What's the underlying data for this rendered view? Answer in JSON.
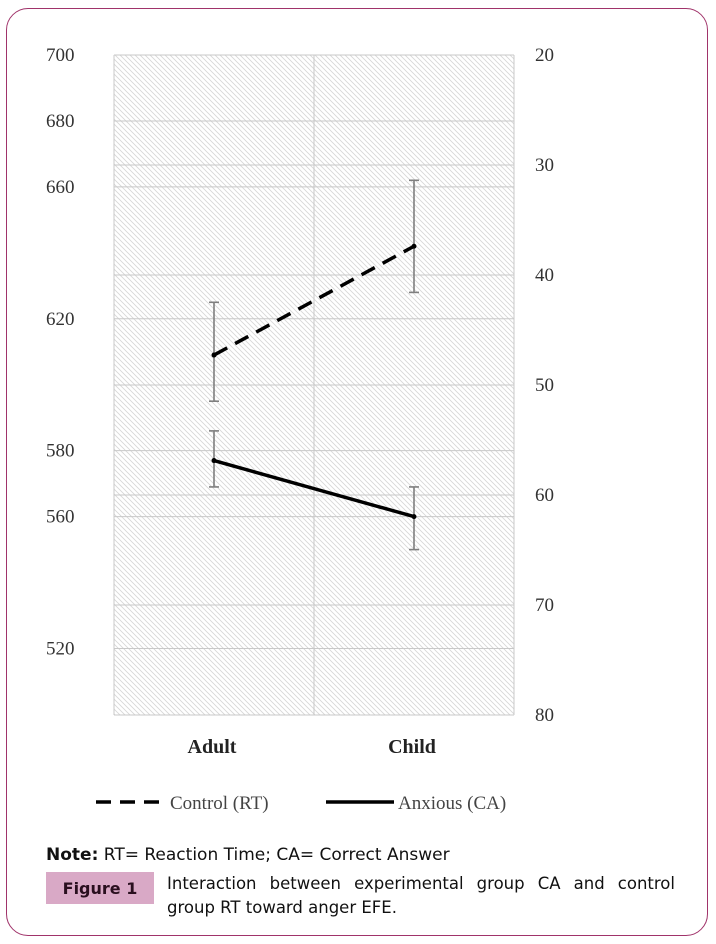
{
  "chart_data": {
    "type": "line",
    "categories": [
      "Adult",
      "Child"
    ],
    "y_left": {
      "ticks": [
        700,
        680,
        660,
        620,
        580,
        560,
        520
      ]
    },
    "y_right": {
      "ticks": [
        20,
        30,
        40,
        50,
        60,
        70,
        80
      ],
      "inverted": true
    },
    "grid": true,
    "legend_position": "bottom",
    "series": [
      {
        "name": "Control (RT)",
        "axis": "left",
        "style": "dashed",
        "values": [
          609,
          642
        ],
        "error_low": [
          595,
          628
        ],
        "error_high": [
          625,
          662
        ]
      },
      {
        "name": "Anxious (CA)",
        "axis": "left",
        "style": "solid",
        "values": [
          577,
          560
        ],
        "error_low": [
          569,
          550
        ],
        "error_high": [
          586,
          569
        ]
      }
    ]
  },
  "colors": {
    "frame": "#a0336a",
    "figure_badge": "#d9a9c6",
    "line": "#000000",
    "error_bar": "#7f7f7f",
    "grid": "#c8c8c8"
  },
  "note": {
    "label": "Note:",
    "text": " RT= Reaction Time; CA= Correct Answer"
  },
  "figure": {
    "label": "Figure 1",
    "caption": "Interaction between experimental group CA and control group RT toward anger EFE."
  }
}
